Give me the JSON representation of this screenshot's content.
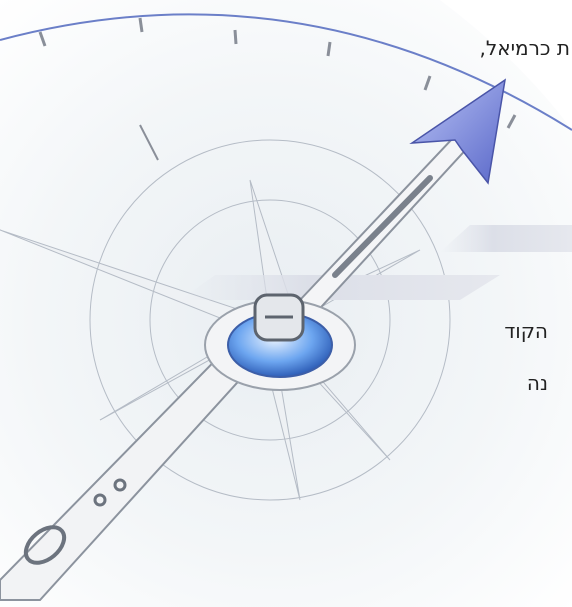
{
  "texts": {
    "line1": "ת כרמיאל,",
    "line2": "הקוד",
    "line3": "נה"
  }
}
